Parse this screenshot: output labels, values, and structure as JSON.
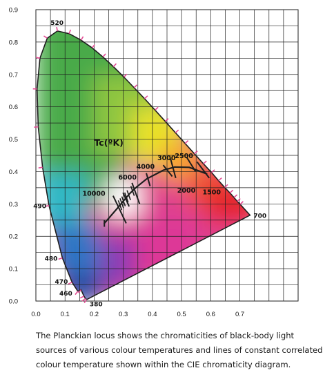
{
  "chart_data": {
    "type": "scatter",
    "xlim": [
      0.0,
      0.9
    ],
    "ylim": [
      0.0,
      0.9
    ],
    "x_ticks": [
      "0.0",
      "0.1",
      "0.2",
      "0.3",
      "0.4",
      "0.5",
      "0.6",
      "0.7"
    ],
    "y_ticks": [
      "0.0",
      "0.1",
      "0.2",
      "0.3",
      "0.4",
      "0.5",
      "0.6",
      "0.7",
      "0.8",
      "0.9"
    ],
    "grid": true,
    "spectral_locus": {
      "points": [
        {
          "x": 0.175,
          "y": 0.005
        },
        {
          "x": 0.174,
          "y": 0.005
        },
        {
          "x": 0.17,
          "y": 0.008
        },
        {
          "x": 0.165,
          "y": 0.015
        },
        {
          "x": 0.155,
          "y": 0.035
        },
        {
          "x": 0.144,
          "y": 0.03
        },
        {
          "x": 0.124,
          "y": 0.058
        },
        {
          "x": 0.091,
          "y": 0.133
        },
        {
          "x": 0.045,
          "y": 0.295
        },
        {
          "x": 0.023,
          "y": 0.413
        },
        {
          "x": 0.008,
          "y": 0.538
        },
        {
          "x": 0.004,
          "y": 0.655
        },
        {
          "x": 0.014,
          "y": 0.75
        },
        {
          "x": 0.039,
          "y": 0.812
        },
        {
          "x": 0.074,
          "y": 0.834
        },
        {
          "x": 0.114,
          "y": 0.826
        },
        {
          "x": 0.155,
          "y": 0.806
        },
        {
          "x": 0.193,
          "y": 0.782
        },
        {
          "x": 0.23,
          "y": 0.754
        },
        {
          "x": 0.266,
          "y": 0.724
        },
        {
          "x": 0.302,
          "y": 0.692
        },
        {
          "x": 0.337,
          "y": 0.659
        },
        {
          "x": 0.373,
          "y": 0.625
        },
        {
          "x": 0.409,
          "y": 0.59
        },
        {
          "x": 0.444,
          "y": 0.555
        },
        {
          "x": 0.479,
          "y": 0.52
        },
        {
          "x": 0.512,
          "y": 0.487
        },
        {
          "x": 0.544,
          "y": 0.455
        },
        {
          "x": 0.575,
          "y": 0.424
        },
        {
          "x": 0.603,
          "y": 0.397
        },
        {
          "x": 0.627,
          "y": 0.372
        },
        {
          "x": 0.648,
          "y": 0.351
        },
        {
          "x": 0.666,
          "y": 0.334
        },
        {
          "x": 0.68,
          "y": 0.32
        },
        {
          "x": 0.691,
          "y": 0.308
        },
        {
          "x": 0.701,
          "y": 0.299
        },
        {
          "x": 0.735,
          "y": 0.265
        }
      ]
    },
    "wavelength_labels": [
      {
        "label": "520",
        "x": 0.074,
        "y": 0.834
      },
      {
        "label": "490",
        "x": 0.045,
        "y": 0.295
      },
      {
        "label": "480",
        "x": 0.091,
        "y": 0.133
      },
      {
        "label": "470",
        "x": 0.124,
        "y": 0.058
      },
      {
        "label": "460",
        "x": 0.144,
        "y": 0.03
      },
      {
        "label": "380",
        "x": 0.175,
        "y": 0.005
      },
      {
        "label": "700",
        "x": 0.735,
        "y": 0.265
      }
    ],
    "planckian_locus": {
      "points": [
        {
          "x": 0.235,
          "y": 0.24
        },
        {
          "x": 0.281,
          "y": 0.288
        },
        {
          "x": 0.304,
          "y": 0.313
        },
        {
          "x": 0.322,
          "y": 0.332
        },
        {
          "x": 0.345,
          "y": 0.352
        },
        {
          "x": 0.38,
          "y": 0.377
        },
        {
          "x": 0.437,
          "y": 0.404
        },
        {
          "x": 0.476,
          "y": 0.414
        },
        {
          "x": 0.526,
          "y": 0.413
        },
        {
          "x": 0.586,
          "y": 0.393
        }
      ]
    },
    "cct_lines": [
      {
        "x1": 0.265,
        "y1": 0.325,
        "x2": 0.31,
        "y2": 0.24
      },
      {
        "x1": 0.299,
        "y1": 0.335,
        "x2": 0.32,
        "y2": 0.292
      },
      {
        "x1": 0.33,
        "y1": 0.365,
        "x2": 0.356,
        "y2": 0.3
      },
      {
        "x1": 0.379,
        "y1": 0.395,
        "x2": 0.392,
        "y2": 0.355
      },
      {
        "x1": 0.437,
        "y1": 0.42,
        "x2": 0.468,
        "y2": 0.385
      },
      {
        "x1": 0.462,
        "y1": 0.44,
        "x2": 0.48,
        "y2": 0.38
      },
      {
        "x1": 0.517,
        "y1": 0.445,
        "x2": 0.548,
        "y2": 0.4
      },
      {
        "x1": 0.553,
        "y1": 0.43,
        "x2": 0.595,
        "y2": 0.38
      }
    ],
    "temperature_labels": [
      {
        "label": "Tc(ºK)",
        "x": 0.2,
        "y": 0.48
      },
      {
        "label": "10000",
        "x": 0.16,
        "y": 0.325
      },
      {
        "label": "6000",
        "x": 0.283,
        "y": 0.375
      },
      {
        "label": "4000",
        "x": 0.345,
        "y": 0.408
      },
      {
        "label": "3000",
        "x": 0.417,
        "y": 0.435
      },
      {
        "label": "2500",
        "x": 0.477,
        "y": 0.442
      },
      {
        "label": "2000",
        "x": 0.485,
        "y": 0.335
      },
      {
        "label": "1500",
        "x": 0.572,
        "y": 0.33
      }
    ]
  },
  "caption": {
    "line1": "The Planckian locus shows the chromaticities of black-body light",
    "line2": "sources of various colour temperatures and lines of constant correlated",
    "line3": "colour temperature shown within the CIE chromaticity diagram."
  }
}
